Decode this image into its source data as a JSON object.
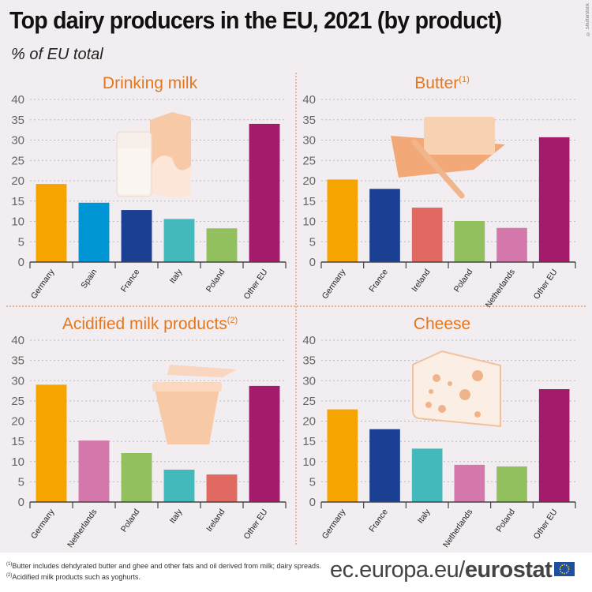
{
  "title": "Top dairy producers in the EU, 2021 (by product)",
  "subtitle": "% of EU total",
  "credit": "© Shutterstock",
  "colors": {
    "Germany": "#f5a400",
    "Spain": "#0096d6",
    "France": "#1a3f93",
    "Italy": "#44b9bc",
    "Poland": "#92c05e",
    "Other EU": "#a51b6b",
    "Ireland": "#e06a62",
    "Netherlands": "#d478ab",
    "title_accent": "#e5761b",
    "illustration": "#f8c9a6"
  },
  "chart_data": [
    {
      "type": "bar",
      "title": "Drinking milk",
      "title_note": "",
      "illustration": "milk-glass-and-carton",
      "categories": [
        "Germany",
        "Spain",
        "France",
        "Italy",
        "Poland",
        "Other EU"
      ],
      "values": [
        19.2,
        14.6,
        12.8,
        10.6,
        8.3,
        34.0
      ],
      "ylim": [
        0,
        40
      ],
      "yticks": [
        0,
        5,
        10,
        15,
        20,
        25,
        30,
        35,
        40
      ],
      "grid": true
    },
    {
      "type": "bar",
      "title": "Butter",
      "title_note": "(1)",
      "illustration": "butter-dish",
      "categories": [
        "Germany",
        "France",
        "Ireland",
        "Poland",
        "Netherlands",
        "Other EU"
      ],
      "values": [
        20.3,
        18.0,
        13.4,
        10.1,
        8.4,
        30.7
      ],
      "ylim": [
        0,
        40
      ],
      "yticks": [
        0,
        5,
        10,
        15,
        20,
        25,
        30,
        35,
        40
      ],
      "grid": true
    },
    {
      "type": "bar",
      "title": "Acidified milk products",
      "title_note": "(2)",
      "illustration": "yoghurt-cup",
      "categories": [
        "Germany",
        "Netherlands",
        "Poland",
        "Italy",
        "Ireland",
        "Other EU"
      ],
      "values": [
        29.0,
        15.2,
        12.1,
        8.0,
        6.8,
        28.7
      ],
      "ylim": [
        0,
        40
      ],
      "yticks": [
        0,
        5,
        10,
        15,
        20,
        25,
        30,
        35,
        40
      ],
      "grid": true
    },
    {
      "type": "bar",
      "title": "Cheese",
      "title_note": "",
      "illustration": "cheese-wedge",
      "categories": [
        "Germany",
        "France",
        "Italy",
        "Netherlands",
        "Poland",
        "Other EU"
      ],
      "values": [
        22.9,
        18.0,
        13.2,
        9.2,
        8.8,
        27.9
      ],
      "ylim": [
        0,
        40
      ],
      "yticks": [
        0,
        5,
        10,
        15,
        20,
        25,
        30,
        35,
        40
      ],
      "grid": true
    }
  ],
  "footnotes": [
    {
      "mark": "(1)",
      "text": "Butter includes dehdyrated butter and ghee and other fats and oil derived from milk; dairy spreads."
    },
    {
      "mark": "(2)",
      "text": "Acidified milk products such as yoghurts."
    }
  ],
  "footer": {
    "site_prefix": "ec.europa.eu/",
    "site_brand": "eurostat"
  }
}
